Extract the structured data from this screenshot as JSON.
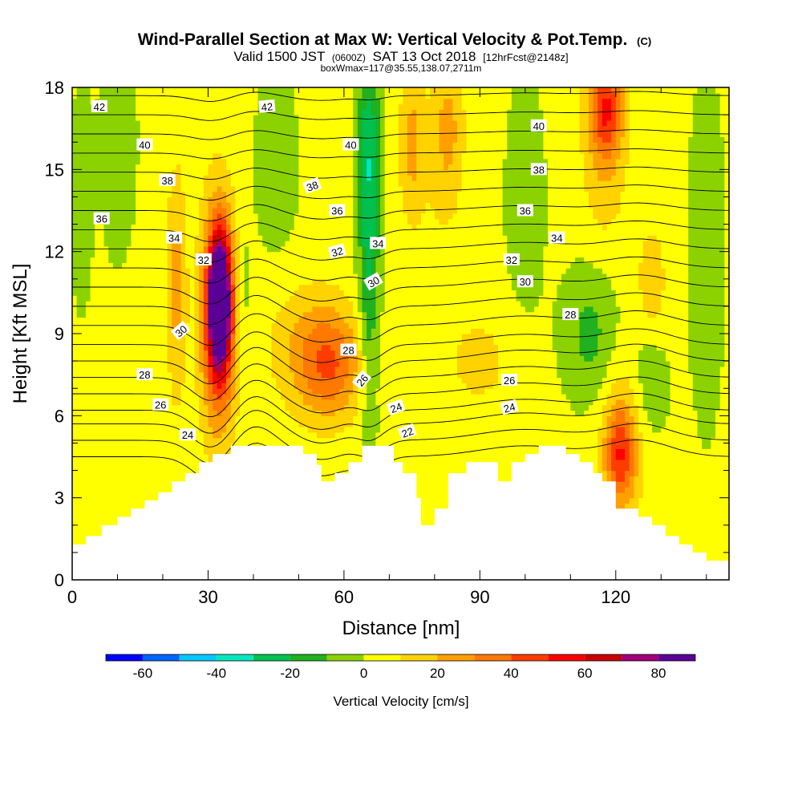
{
  "chart_data": {
    "type": "heatmap",
    "title": "Wind-Parallel Section at Max W: Vertical Velocity & Pot.Temp.",
    "title_suffix": "(C)",
    "subtitle": {
      "part1": "Valid 1500 JST",
      "part2": "(0600Z)",
      "part3": "SAT 13 Oct 2018",
      "part4": "[12hrFcst@2148z]"
    },
    "subtitle2": "boxWmax=117@35.55,138.07,2711m",
    "xlabel": "Distance [nm]",
    "ylabel": "Height [Kft MSL]",
    "xlim": [
      0,
      145
    ],
    "ylim": [
      0,
      18
    ],
    "xticks": [
      0,
      30,
      60,
      90,
      120
    ],
    "yticks": [
      0,
      3,
      6,
      9,
      12,
      15,
      18
    ],
    "colorbar": {
      "label": "Vertical Velocity [cm/s]",
      "levels": [
        -70,
        -60,
        -50,
        -40,
        -30,
        -20,
        -10,
        0,
        10,
        20,
        30,
        40,
        50,
        60,
        70,
        80,
        90
      ],
      "tick_labels": [
        "-60",
        "-40",
        "-20",
        "0",
        "20",
        "40",
        "60",
        "80"
      ],
      "tick_values": [
        -60,
        -40,
        -20,
        0,
        20,
        40,
        60,
        80
      ],
      "colors": [
        "#0000ff",
        "#0064ff",
        "#00c8ff",
        "#00e8c0",
        "#00c050",
        "#20b020",
        "#8cd200",
        "#ffff00",
        "#ffd200",
        "#ffa000",
        "#ff7800",
        "#ff3c00",
        "#ff0000",
        "#c80000",
        "#a0007a",
        "#5a0096"
      ]
    },
    "terrain_kft": [
      [
        0,
        1.3
      ],
      [
        3,
        1.3
      ],
      [
        3,
        1.6
      ],
      [
        6.5,
        1.6
      ],
      [
        6.5,
        2.0
      ],
      [
        10,
        2.0
      ],
      [
        10,
        2.3
      ],
      [
        13,
        2.3
      ],
      [
        13,
        2.6
      ],
      [
        16,
        2.6
      ],
      [
        16,
        2.9
      ],
      [
        19,
        2.9
      ],
      [
        19,
        3.2
      ],
      [
        22,
        3.2
      ],
      [
        22,
        3.6
      ],
      [
        25,
        3.6
      ],
      [
        25,
        3.9
      ],
      [
        28,
        3.9
      ],
      [
        28,
        4.3
      ],
      [
        31,
        4.3
      ],
      [
        31,
        4.6
      ],
      [
        35,
        4.6
      ],
      [
        35,
        4.9
      ],
      [
        51,
        4.9
      ],
      [
        51,
        4.6
      ],
      [
        54,
        4.6
      ],
      [
        54,
        4.2
      ],
      [
        55,
        4.2
      ],
      [
        55,
        3.6
      ],
      [
        58,
        3.6
      ],
      [
        58,
        3.9
      ],
      [
        61,
        3.9
      ],
      [
        61,
        4.3
      ],
      [
        64,
        4.3
      ],
      [
        64,
        4.9
      ],
      [
        71,
        4.9
      ],
      [
        71,
        4.3
      ],
      [
        73,
        4.3
      ],
      [
        73,
        3.9
      ],
      [
        76,
        3.9
      ],
      [
        76,
        3.0
      ],
      [
        77,
        3.0
      ],
      [
        77,
        2.0
      ],
      [
        80,
        2.0
      ],
      [
        80,
        2.6
      ],
      [
        83,
        2.6
      ],
      [
        83,
        3.9
      ],
      [
        87,
        3.9
      ],
      [
        87,
        4.3
      ],
      [
        94,
        4.3
      ],
      [
        94,
        3.6
      ],
      [
        97,
        3.6
      ],
      [
        97,
        4.3
      ],
      [
        100,
        4.3
      ],
      [
        100,
        4.6
      ],
      [
        103,
        4.6
      ],
      [
        103,
        4.9
      ],
      [
        109,
        4.9
      ],
      [
        109,
        4.6
      ],
      [
        112,
        4.6
      ],
      [
        112,
        4.3
      ],
      [
        115,
        4.3
      ],
      [
        115,
        3.9
      ],
      [
        117,
        3.9
      ],
      [
        117,
        3.6
      ],
      [
        120,
        3.6
      ],
      [
        120,
        2.6
      ],
      [
        125,
        2.6
      ],
      [
        125,
        2.3
      ],
      [
        128,
        2.3
      ],
      [
        128,
        2.0
      ],
      [
        131,
        2.0
      ],
      [
        131,
        1.6
      ],
      [
        134,
        1.6
      ],
      [
        134,
        1.3
      ],
      [
        137,
        1.3
      ],
      [
        137,
        1.0
      ],
      [
        140,
        1.0
      ],
      [
        140,
        0.7
      ],
      [
        145,
        0.7
      ]
    ],
    "w_field_blobs": [
      {
        "x": 32.5,
        "y": 10.3,
        "sx": 1.4,
        "sy": 1.4,
        "w": 85
      },
      {
        "x": 32.5,
        "y": 9.8,
        "sx": 2.4,
        "sy": 2.4,
        "w": 55
      },
      {
        "x": 32.0,
        "y": 9.6,
        "sx": 3.0,
        "sy": 3.6,
        "w": 18
      },
      {
        "x": 23.0,
        "y": 10.8,
        "sx": 1.5,
        "sy": 3.0,
        "w": 22
      },
      {
        "x": 37.5,
        "y": 10.5,
        "sx": 1.2,
        "sy": 1.5,
        "w": -12
      },
      {
        "x": 57.0,
        "y": 7.8,
        "sx": 5.0,
        "sy": 1.4,
        "w": 30
      },
      {
        "x": 52.0,
        "y": 8.6,
        "sx": 7.0,
        "sy": 1.7,
        "w": 15
      },
      {
        "x": 65.5,
        "y": 10.5,
        "sx": 1.6,
        "sy": 3.5,
        "w": -22
      },
      {
        "x": 65.5,
        "y": 16.0,
        "sx": 1.8,
        "sy": 2.5,
        "w": -25
      },
      {
        "x": 75.0,
        "y": 16.0,
        "sx": 2.0,
        "sy": 2.0,
        "w": 20
      },
      {
        "x": 83.0,
        "y": 16.5,
        "sx": 2.5,
        "sy": 2.0,
        "w": 20
      },
      {
        "x": 118.0,
        "y": 17.3,
        "sx": 2.5,
        "sy": 1.2,
        "w": 35
      },
      {
        "x": 117.5,
        "y": 16.0,
        "sx": 3.5,
        "sy": 2.5,
        "w": 18
      },
      {
        "x": 121.0,
        "y": 4.6,
        "sx": 2.3,
        "sy": 1.2,
        "w": 32
      },
      {
        "x": 121.5,
        "y": 5.0,
        "sx": 3.5,
        "sy": 2.2,
        "w": 18
      },
      {
        "x": 128.0,
        "y": 11.0,
        "sx": 2.0,
        "sy": 1.2,
        "w": 18
      },
      {
        "x": 114.5,
        "y": 9.0,
        "sx": 4.0,
        "sy": 1.7,
        "w": -16
      },
      {
        "x": 127.0,
        "y": 7.0,
        "sx": 3.0,
        "sy": 1.5,
        "w": -10
      },
      {
        "x": 90.0,
        "y": 8.0,
        "sx": 5.0,
        "sy": 1.2,
        "w": 12
      },
      {
        "x": 2.0,
        "y": 14.0,
        "sx": 1.5,
        "sy": 2.5,
        "w": -12
      },
      {
        "x": 10.0,
        "y": 16.0,
        "sx": 3.0,
        "sy": 3.0,
        "w": -8
      },
      {
        "x": 45.0,
        "y": 15.0,
        "sx": 4.0,
        "sy": 3.0,
        "w": -6
      },
      {
        "x": 100.0,
        "y": 14.0,
        "sx": 4.0,
        "sy": 4.0,
        "w": -5
      },
      {
        "x": 140.0,
        "y": 12.0,
        "sx": 3.0,
        "sy": 5.0,
        "w": -7
      },
      {
        "x": 80.0,
        "y": 13.0,
        "sx": 4.0,
        "sy": 3.0,
        "w": 4
      }
    ],
    "theta_contours": [
      {
        "level": 22,
        "base_kft": 4.5
      },
      {
        "level": 23,
        "base_kft": 5.1
      },
      {
        "level": 24,
        "base_kft": 5.7
      },
      {
        "level": 25,
        "base_kft": 6.2
      },
      {
        "level": 26,
        "base_kft": 6.8
      },
      {
        "level": 27,
        "base_kft": 7.4
      },
      {
        "level": 28,
        "base_kft": 8.0
      },
      {
        "level": 29,
        "base_kft": 8.6
      },
      {
        "level": 30,
        "base_kft": 9.3
      },
      {
        "level": 31,
        "base_kft": 10.0
      },
      {
        "level": 32,
        "base_kft": 10.7
      },
      {
        "level": 33,
        "base_kft": 11.4
      },
      {
        "level": 34,
        "base_kft": 12.1
      },
      {
        "level": 35,
        "base_kft": 12.8
      },
      {
        "level": 36,
        "base_kft": 13.5
      },
      {
        "level": 37,
        "base_kft": 14.2
      },
      {
        "level": 38,
        "base_kft": 14.9
      },
      {
        "level": 39,
        "base_kft": 15.6
      },
      {
        "level": 40,
        "base_kft": 16.3
      },
      {
        "level": 41,
        "base_kft": 17.0
      },
      {
        "level": 42,
        "base_kft": 17.7
      }
    ],
    "contour_labels": [
      {
        "text": "42",
        "x": 6,
        "y": 17.3,
        "angle": 0
      },
      {
        "text": "42",
        "x": 43,
        "y": 17.3,
        "angle": -5
      },
      {
        "text": "40",
        "x": 16,
        "y": 15.9,
        "angle": 0
      },
      {
        "text": "40",
        "x": 61.5,
        "y": 15.9,
        "angle": 0
      },
      {
        "text": "40",
        "x": 103,
        "y": 16.6,
        "angle": 0
      },
      {
        "text": "38",
        "x": 21,
        "y": 14.6,
        "angle": 0
      },
      {
        "text": "38",
        "x": 53,
        "y": 14.4,
        "angle": -20
      },
      {
        "text": "38",
        "x": 103,
        "y": 15.0,
        "angle": 0
      },
      {
        "text": "36",
        "x": 6.5,
        "y": 13.2,
        "angle": 0
      },
      {
        "text": "36",
        "x": 58.5,
        "y": 13.5,
        "angle": 0
      },
      {
        "text": "36",
        "x": 100,
        "y": 13.5,
        "angle": 0
      },
      {
        "text": "34",
        "x": 22.5,
        "y": 12.5,
        "angle": 0
      },
      {
        "text": "34",
        "x": 67.5,
        "y": 12.3,
        "angle": 0
      },
      {
        "text": "34",
        "x": 107,
        "y": 12.5,
        "angle": 0
      },
      {
        "text": "32",
        "x": 29,
        "y": 11.7,
        "angle": 0
      },
      {
        "text": "32",
        "x": 58.5,
        "y": 12.0,
        "angle": -15
      },
      {
        "text": "32",
        "x": 97,
        "y": 11.7,
        "angle": 0
      },
      {
        "text": "30",
        "x": 24,
        "y": 9.1,
        "angle": -40
      },
      {
        "text": "30",
        "x": 66.5,
        "y": 10.9,
        "angle": -30
      },
      {
        "text": "30",
        "x": 100,
        "y": 10.9,
        "angle": 0
      },
      {
        "text": "28",
        "x": 16,
        "y": 7.5,
        "angle": 0
      },
      {
        "text": "28",
        "x": 61,
        "y": 8.4,
        "angle": 0
      },
      {
        "text": "28",
        "x": 110,
        "y": 9.7,
        "angle": 0
      },
      {
        "text": "26",
        "x": 19.5,
        "y": 6.4,
        "angle": 0
      },
      {
        "text": "26",
        "x": 64,
        "y": 7.3,
        "angle": -50
      },
      {
        "text": "26",
        "x": 96.5,
        "y": 7.3,
        "angle": 0
      },
      {
        "text": "24",
        "x": 25.5,
        "y": 5.3,
        "angle": 0
      },
      {
        "text": "24",
        "x": 71.5,
        "y": 6.3,
        "angle": -20
      },
      {
        "text": "24",
        "x": 96.5,
        "y": 6.3,
        "angle": -15
      },
      {
        "text": "22",
        "x": 74,
        "y": 5.4,
        "angle": -20
      }
    ]
  }
}
